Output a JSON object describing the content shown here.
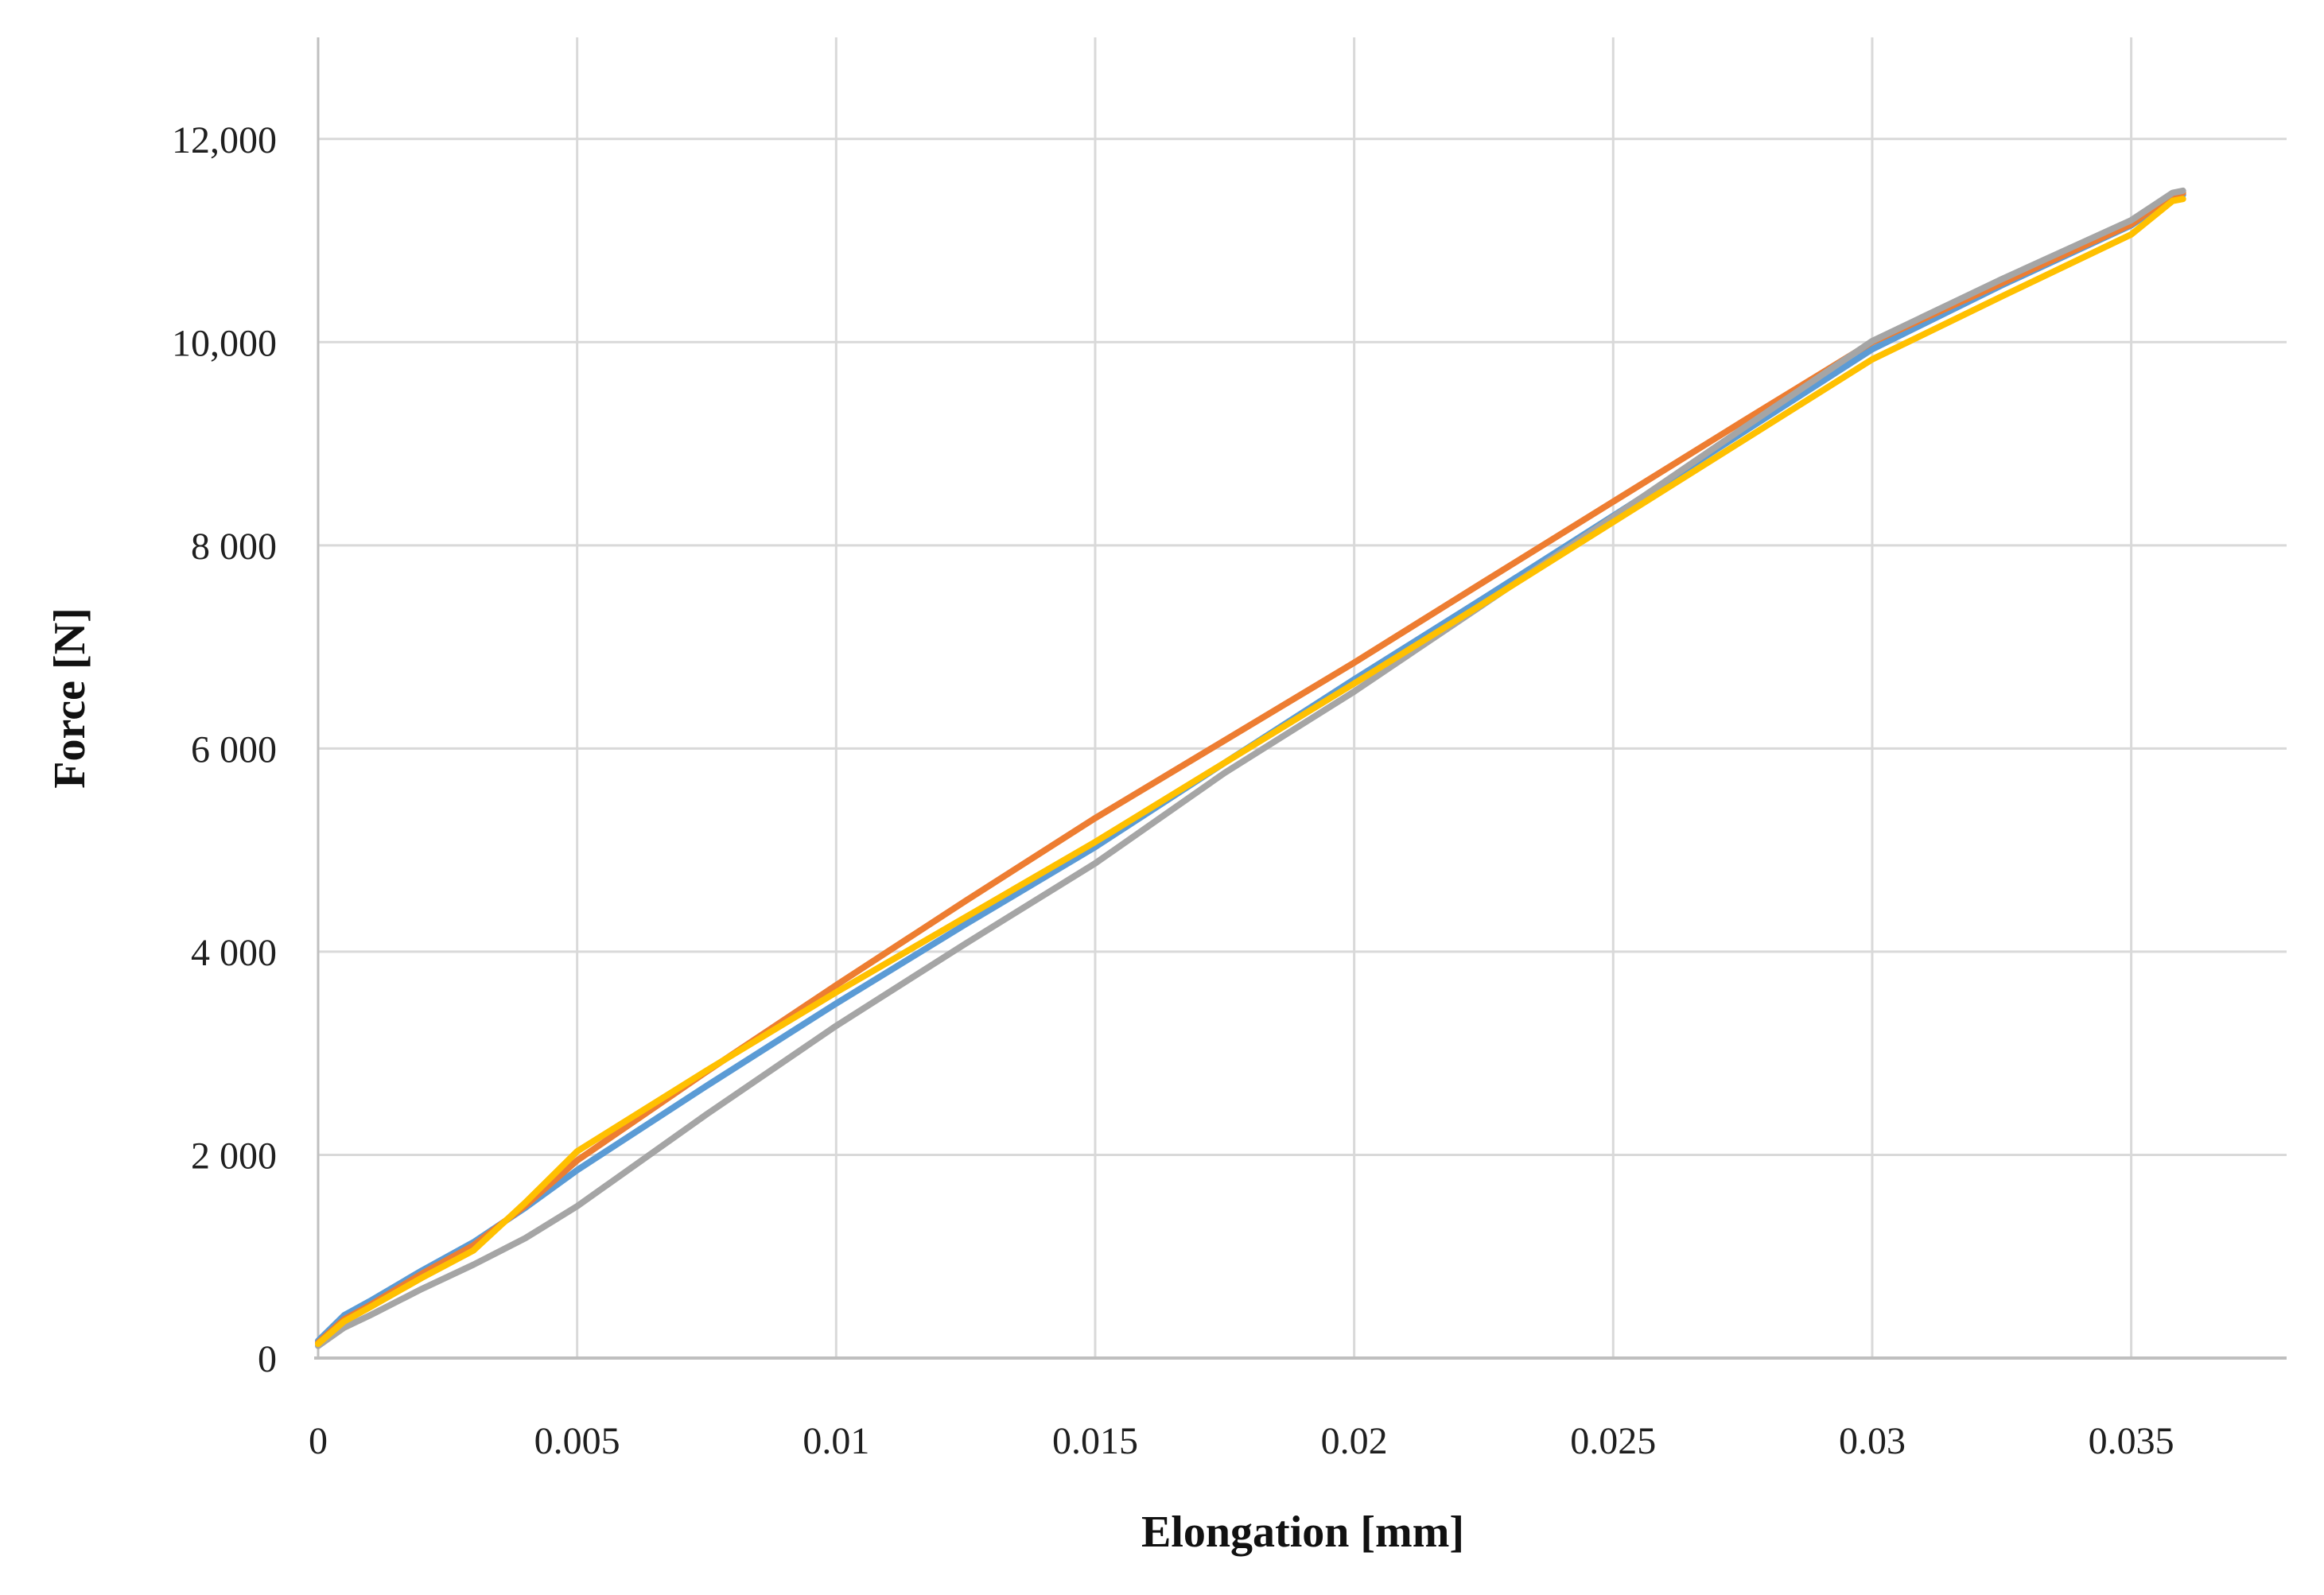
{
  "figure": {
    "background": "#ffffff"
  },
  "colors": {
    "gridline": "#d9d9d9",
    "axis_line": "#bfbfbf",
    "tick_text": "#1f1f1f",
    "title_text": "#111111",
    "background": "#ffffff"
  },
  "chart_data": {
    "type": "line",
    "title": "",
    "xlabel": "Elongation [mm]",
    "ylabel": "Force [N]",
    "xlim": [
      0,
      0.038
    ],
    "ylim": [
      0,
      13000
    ],
    "grid": true,
    "legend_position": "none",
    "x_tick_values": [
      0,
      0.005,
      0.01,
      0.015,
      0.02,
      0.025,
      0.03,
      0.035
    ],
    "x_tick_labels": [
      "0",
      "0.005",
      "0.01",
      "0.015",
      "0.02",
      "0.025",
      "0.03",
      "0.035"
    ],
    "y_tick_values": [
      0,
      2000,
      4000,
      6000,
      8000,
      10000,
      12000
    ],
    "y_tick_labels": [
      "0",
      "2 000",
      "4 000",
      "6 000",
      "8 000",
      "10,000",
      "12,000"
    ],
    "x": [
      0,
      0.0005,
      0.001,
      0.002,
      0.003,
      0.004,
      0.005,
      0.0075,
      0.01,
      0.0125,
      0.015,
      0.0175,
      0.02,
      0.0225,
      0.025,
      0.0275,
      0.03,
      0.0325,
      0.035,
      0.0358,
      0.036
    ],
    "series": [
      {
        "name": "blue",
        "color": "#5B9BD5",
        "values": [
          170,
          420,
          560,
          860,
          1140,
          1480,
          1850,
          2680,
          3490,
          4270,
          5030,
          5860,
          6680,
          7480,
          8290,
          9110,
          9930,
          10560,
          11150,
          11430,
          11450
        ]
      },
      {
        "name": "orange",
        "color": "#ED7D31",
        "values": [
          150,
          380,
          520,
          830,
          1110,
          1500,
          1945,
          2820,
          3670,
          4500,
          5315,
          6080,
          6845,
          7640,
          8430,
          9220,
          10000,
          10580,
          11160,
          11450,
          11470
        ]
      },
      {
        "name": "gray",
        "color": "#A5A5A5",
        "values": [
          120,
          300,
          420,
          680,
          920,
          1180,
          1495,
          2400,
          3270,
          4080,
          4870,
          5760,
          6560,
          7420,
          8280,
          9150,
          10010,
          10620,
          11200,
          11470,
          11490
        ]
      },
      {
        "name": "yellow",
        "color": "#FFC000",
        "values": [
          140,
          360,
          500,
          790,
          1060,
          1530,
          2035,
          2830,
          3600,
          4340,
          5080,
          5860,
          6640,
          7430,
          8230,
          9030,
          9830,
          10450,
          11060,
          11390,
          11410
        ]
      }
    ]
  }
}
